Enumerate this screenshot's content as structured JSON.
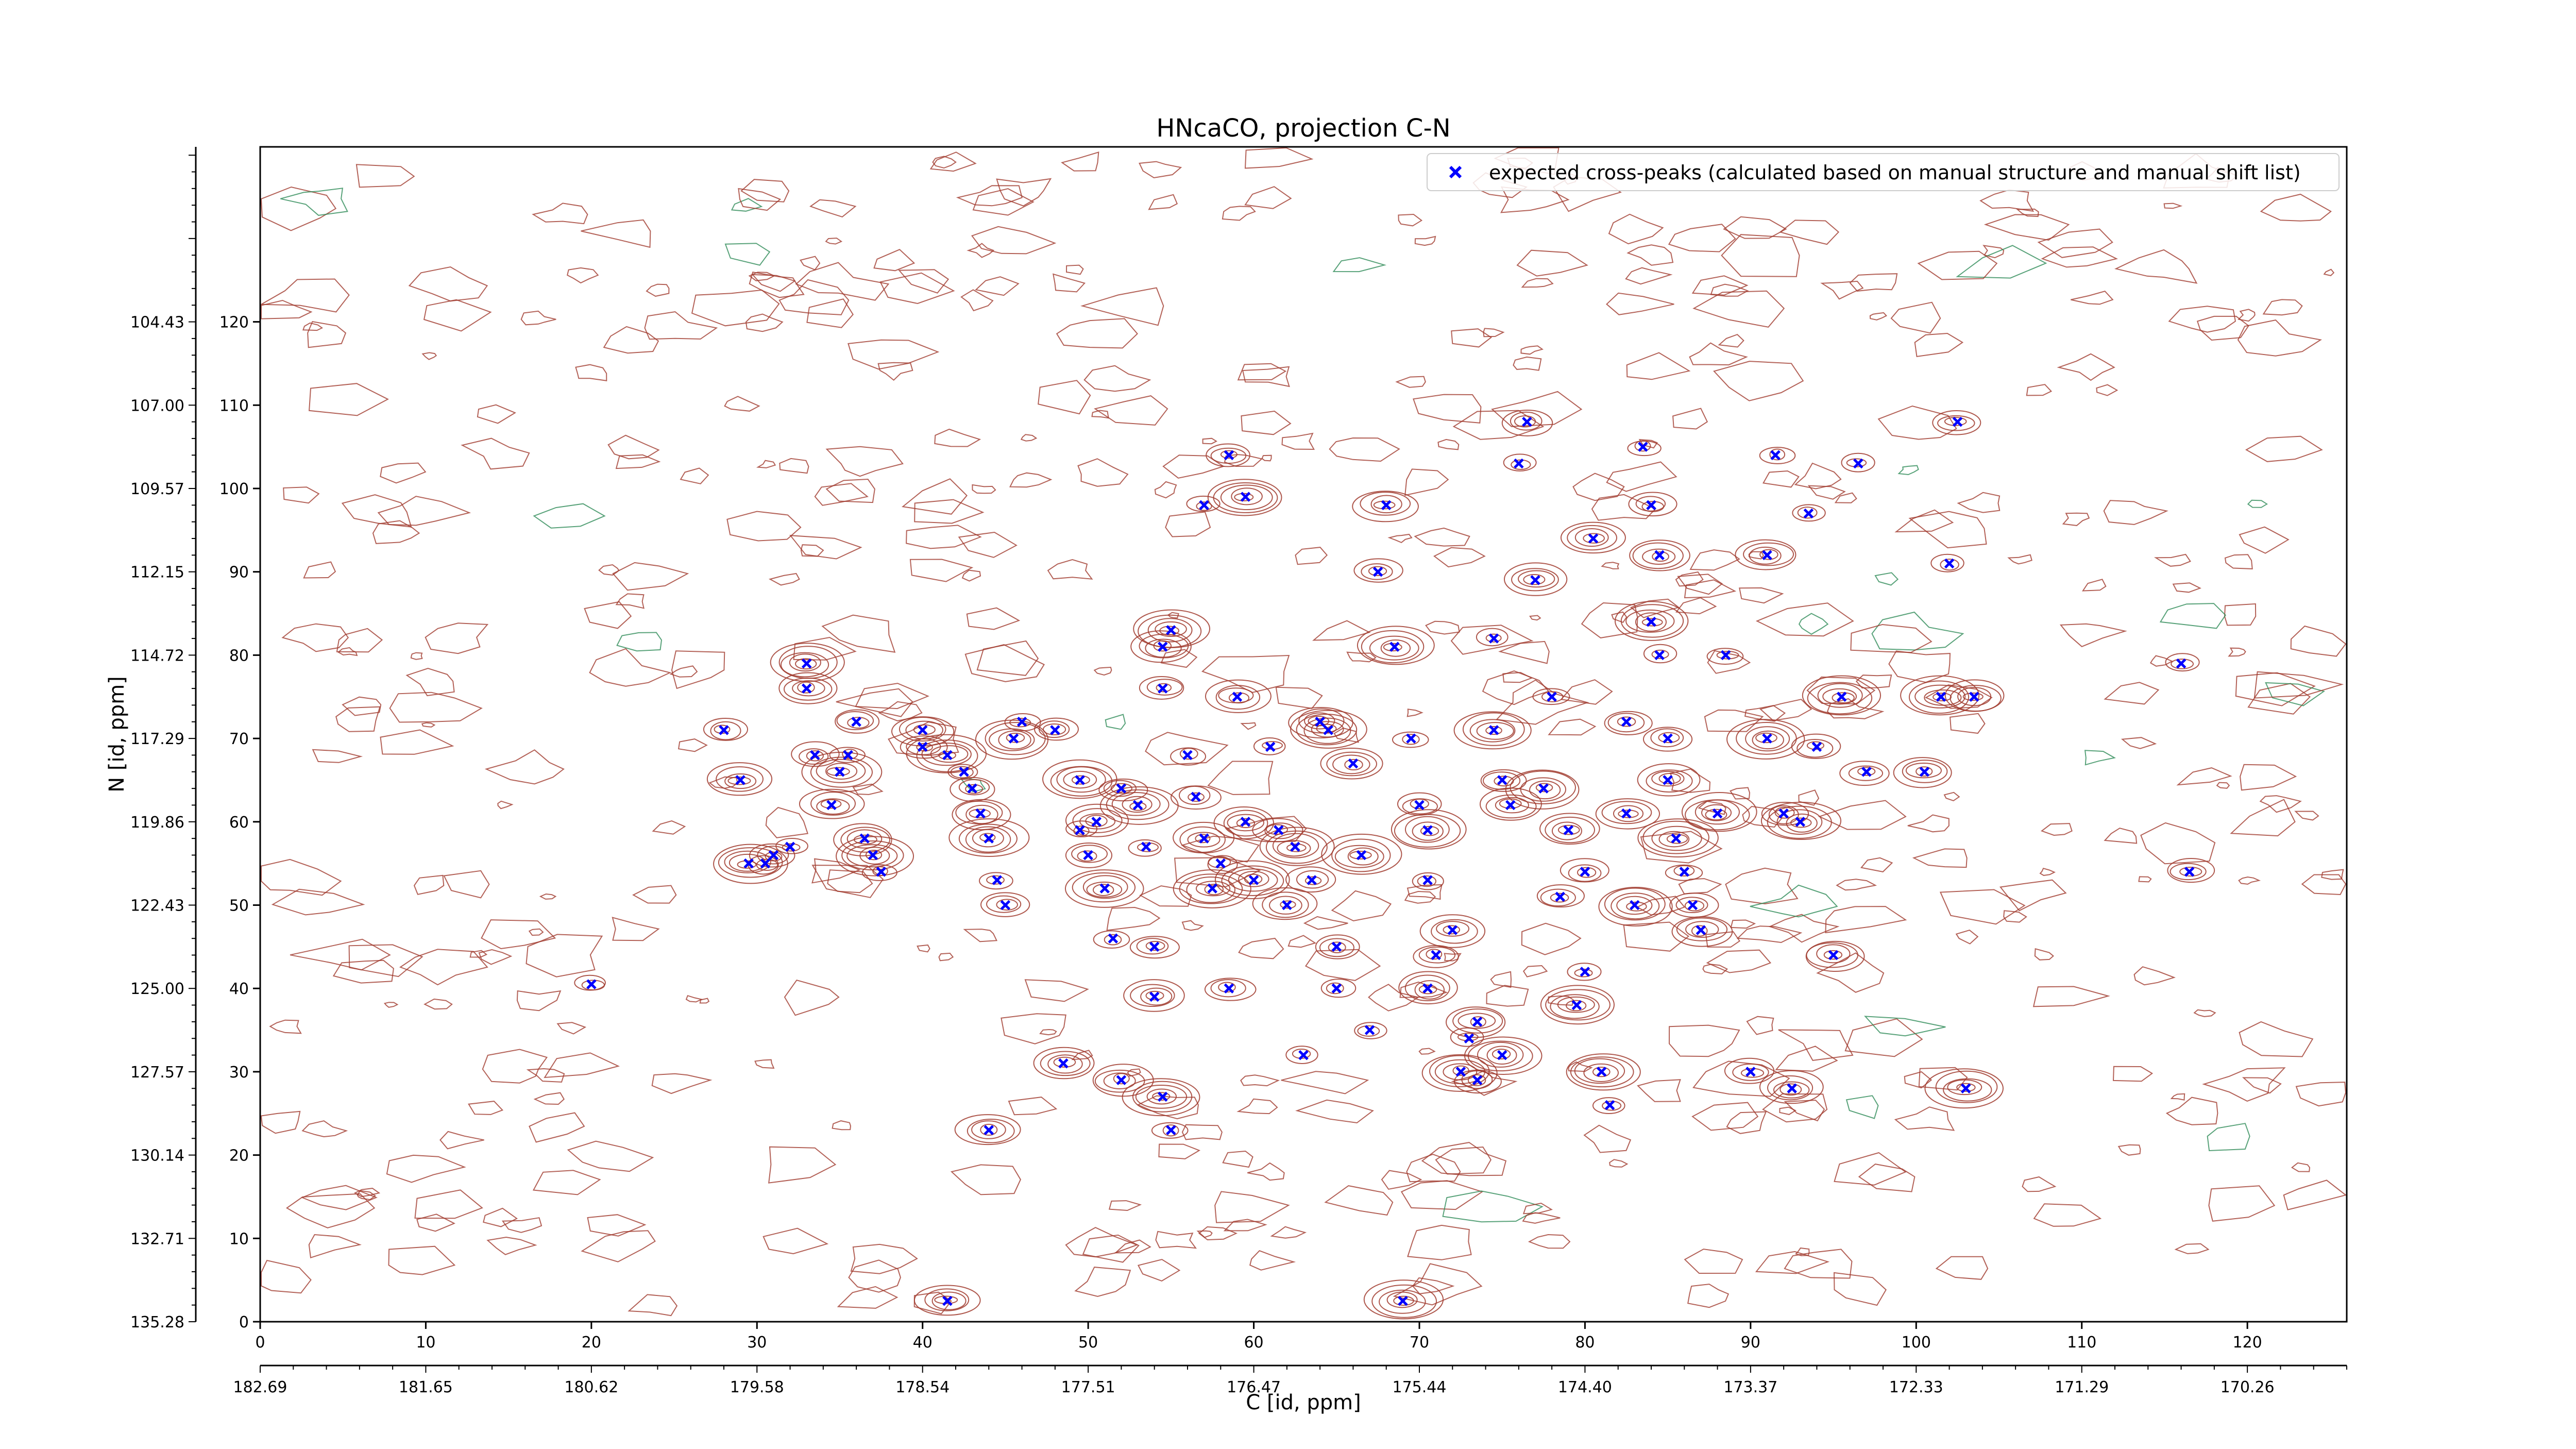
{
  "chart_data": {
    "type": "scatter",
    "title": "HNcaCO, projection C-N",
    "xlabel": "C [id, ppm]",
    "ylabel": "N [id, ppm]",
    "x_index_ticks": [
      "0",
      "10",
      "20",
      "30",
      "40",
      "50",
      "60",
      "70",
      "80",
      "90",
      "100",
      "110",
      "120"
    ],
    "x_ppm_ticks": [
      "182.69",
      "181.65",
      "180.62",
      "179.58",
      "178.54",
      "177.51",
      "176.47",
      "175.44",
      "174.40",
      "173.37",
      "172.33",
      "171.29",
      "170.26"
    ],
    "y_index_ticks": [
      "0",
      "10",
      "20",
      "30",
      "40",
      "50",
      "60",
      "70",
      "80",
      "90",
      "100",
      "110",
      "120"
    ],
    "y_ppm_ticks": [
      "135.28",
      "132.71",
      "130.14",
      "127.57",
      "125.00",
      "122.43",
      "119.86",
      "117.29",
      "114.72",
      "112.15",
      "109.57",
      "107.00",
      "104.43"
    ],
    "xlim": [
      0,
      126
    ],
    "ylim": [
      0,
      141
    ],
    "grid": false,
    "legend": "top-right",
    "colors": {
      "peaks": "#0000ff",
      "contour_positive": "#a0392d",
      "contour_negative": "#2e8b57",
      "axes": "#000000"
    },
    "series": [
      {
        "name": "expected cross-peaks (calculated based on manual structure and manual shift list)",
        "marker": "x",
        "points": [
          [
            20.0,
            40.5
          ],
          [
            28.0,
            71.0
          ],
          [
            29.0,
            65.0
          ],
          [
            29.5,
            55.0
          ],
          [
            30.5,
            55.0
          ],
          [
            31.0,
            56.0
          ],
          [
            33.0,
            76.0
          ],
          [
            33.0,
            79.0
          ],
          [
            32.0,
            57.0
          ],
          [
            33.5,
            68.0
          ],
          [
            34.5,
            62.0
          ],
          [
            35.0,
            66.0
          ],
          [
            35.5,
            68.0
          ],
          [
            36.0,
            72.0
          ],
          [
            36.5,
            58.0
          ],
          [
            37.0,
            56.0
          ],
          [
            37.5,
            54.0
          ],
          [
            40.0,
            69.0
          ],
          [
            40.0,
            71.0
          ],
          [
            41.5,
            68.0
          ],
          [
            42.5,
            66.0
          ],
          [
            43.0,
            64.0
          ],
          [
            43.5,
            61.0
          ],
          [
            44.0,
            58.0
          ],
          [
            44.5,
            53.0
          ],
          [
            45.0,
            50.0
          ],
          [
            44.0,
            23.0
          ],
          [
            45.5,
            70.0
          ],
          [
            46.0,
            72.0
          ],
          [
            48.0,
            71.0
          ],
          [
            48.5,
            31.0
          ],
          [
            49.5,
            65.0
          ],
          [
            49.5,
            59.0
          ],
          [
            50.0,
            56.0
          ],
          [
            50.5,
            60.0
          ],
          [
            51.0,
            52.0
          ],
          [
            51.5,
            46.0
          ],
          [
            52.0,
            64.0
          ],
          [
            52.0,
            29.0
          ],
          [
            53.0,
            62.0
          ],
          [
            53.5,
            57.0
          ],
          [
            54.0,
            45.0
          ],
          [
            54.0,
            39.0
          ],
          [
            54.5,
            27.0
          ],
          [
            55.0,
            23.0
          ],
          [
            54.5,
            76.0
          ],
          [
            54.5,
            81.0
          ],
          [
            55.0,
            83.0
          ],
          [
            56.0,
            68.0
          ],
          [
            56.5,
            63.0
          ],
          [
            57.0,
            58.0
          ],
          [
            57.5,
            52.0
          ],
          [
            58.0,
            55.0
          ],
          [
            58.5,
            40.0
          ],
          [
            59.0,
            75.0
          ],
          [
            59.5,
            99.0
          ],
          [
            57.0,
            98.0
          ],
          [
            58.5,
            104.0
          ],
          [
            59.5,
            60.0
          ],
          [
            60.0,
            53.0
          ],
          [
            61.0,
            69.0
          ],
          [
            61.5,
            59.0
          ],
          [
            62.0,
            50.0
          ],
          [
            62.5,
            57.0
          ],
          [
            63.0,
            32.0
          ],
          [
            63.5,
            53.0
          ],
          [
            64.0,
            72.0
          ],
          [
            64.5,
            71.0
          ],
          [
            65.0,
            40.0
          ],
          [
            65.0,
            45.0
          ],
          [
            66.0,
            67.0
          ],
          [
            66.5,
            56.0
          ],
          [
            67.0,
            35.0
          ],
          [
            67.5,
            90.0
          ],
          [
            68.0,
            98.0
          ],
          [
            68.5,
            81.0
          ],
          [
            69.5,
            70.0
          ],
          [
            70.0,
            62.0
          ],
          [
            70.5,
            40.0
          ],
          [
            70.5,
            59.0
          ],
          [
            70.5,
            53.0
          ],
          [
            71.0,
            44.0
          ],
          [
            72.0,
            47.0
          ],
          [
            72.5,
            30.0
          ],
          [
            73.0,
            34.0
          ],
          [
            73.5,
            29.0
          ],
          [
            73.5,
            36.0
          ],
          [
            74.5,
            71.0
          ],
          [
            74.5,
            82.0
          ],
          [
            75.0,
            65.0
          ],
          [
            75.5,
            62.0
          ],
          [
            75.0,
            32.0
          ],
          [
            76.0,
            103.0
          ],
          [
            76.5,
            108.0
          ],
          [
            77.0,
            89.0
          ],
          [
            77.5,
            64.0
          ],
          [
            78.0,
            75.0
          ],
          [
            78.5,
            51.0
          ],
          [
            79.0,
            59.0
          ],
          [
            79.5,
            38.0
          ],
          [
            80.0,
            42.0
          ],
          [
            80.0,
            54.0
          ],
          [
            80.5,
            94.0
          ],
          [
            81.0,
            30.0
          ],
          [
            81.5,
            26.0
          ],
          [
            82.5,
            72.0
          ],
          [
            82.5,
            61.0
          ],
          [
            83.0,
            50.0
          ],
          [
            83.5,
            105.0
          ],
          [
            84.0,
            98.0
          ],
          [
            84.5,
            92.0
          ],
          [
            84.0,
            84.0
          ],
          [
            84.5,
            80.0
          ],
          [
            85.0,
            70.0
          ],
          [
            85.0,
            65.0
          ],
          [
            85.5,
            58.0
          ],
          [
            86.0,
            54.0
          ],
          [
            86.5,
            50.0
          ],
          [
            87.0,
            47.0
          ],
          [
            88.0,
            61.0
          ],
          [
            88.5,
            80.0
          ],
          [
            90.0,
            30.0
          ],
          [
            91.0,
            92.0
          ],
          [
            91.0,
            70.0
          ],
          [
            91.5,
            104.0
          ],
          [
            92.0,
            61.0
          ],
          [
            92.5,
            28.0
          ],
          [
            93.0,
            60.0
          ],
          [
            93.5,
            97.0
          ],
          [
            94.0,
            69.0
          ],
          [
            95.0,
            44.0
          ],
          [
            95.5,
            75.0
          ],
          [
            96.5,
            103.0
          ],
          [
            97.0,
            66.0
          ],
          [
            100.5,
            66.0
          ],
          [
            101.5,
            75.0
          ],
          [
            102.0,
            91.0
          ],
          [
            102.5,
            108.0
          ],
          [
            103.5,
            75.0
          ],
          [
            103.0,
            28.0
          ],
          [
            116.0,
            79.0
          ],
          [
            116.5,
            54.0
          ],
          [
            41.5,
            2.5
          ],
          [
            69.0,
            2.5
          ]
        ]
      }
    ]
  }
}
